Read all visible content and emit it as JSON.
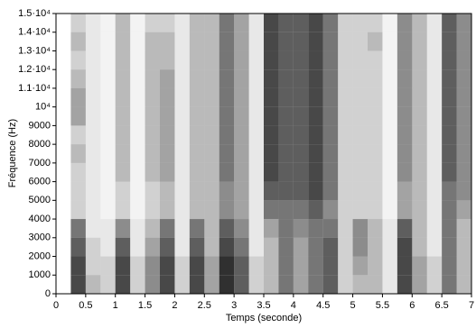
{
  "chart_data": {
    "type": "heatmap",
    "xlabel": "Temps (seconde)",
    "ylabel": "Fréquence (Hz)",
    "xlim": [
      0,
      7
    ],
    "ylim": [
      0,
      15000
    ],
    "xticks": [
      0,
      0.5,
      1,
      1.5,
      2,
      2.5,
      3,
      3.5,
      4,
      4.5,
      5,
      5.5,
      6,
      6.5,
      7
    ],
    "yticks": [
      0,
      1000,
      2000,
      3000,
      4000,
      5000,
      6000,
      7000,
      8000,
      9000,
      {
        "value": 10000,
        "label": "10⁴"
      },
      {
        "value": 11000,
        "label": "1.1·10⁴"
      },
      {
        "value": 12000,
        "label": "1.2·10⁴"
      },
      {
        "value": 13000,
        "label": "1.3·10⁴"
      },
      {
        "value": 14000,
        "label": "1.4·10⁴"
      },
      {
        "value": 15000,
        "label": "1.5·10⁴"
      }
    ],
    "xbins": [
      0,
      0.25,
      0.5,
      0.75,
      1,
      1.25,
      1.5,
      1.75,
      2,
      2.25,
      2.5,
      2.75,
      3,
      3.25,
      3.5,
      3.75,
      4,
      4.25,
      4.5,
      4.75,
      5,
      5.25,
      5.5,
      5.75,
      6,
      6.25,
      6.5,
      6.75,
      7
    ],
    "ybins": [
      0,
      1000,
      2000,
      3000,
      4000,
      5000,
      6000,
      7000,
      8000,
      9000,
      10000,
      11000,
      12000,
      13000,
      14000,
      15000
    ],
    "z": [
      [
        0,
        0,
        0,
        0,
        0,
        0,
        0,
        0,
        0,
        0,
        0,
        0,
        0,
        0,
        0
      ],
      [
        0.8,
        0.8,
        0.7,
        0.6,
        0.2,
        0.2,
        0.2,
        0.3,
        0.2,
        0.4,
        0.4,
        0.3,
        0.2,
        0.3,
        0.2
      ],
      [
        0.3,
        0.2,
        0.2,
        0.1,
        0.1,
        0.1,
        0.1,
        0.1,
        0.1,
        0.1,
        0.1,
        0.1,
        0.1,
        0.1,
        0.1
      ],
      [
        0.2,
        0.2,
        0.1,
        0.1,
        0.05,
        0.05,
        0.05,
        0.05,
        0.05,
        0.05,
        0.05,
        0.05,
        0.05,
        0.05,
        0.05
      ],
      [
        0.8,
        0.8,
        0.7,
        0.5,
        0.2,
        0.2,
        0.3,
        0.3,
        0.3,
        0.3,
        0.3,
        0.3,
        0.3,
        0.3,
        0.3
      ],
      [
        0.2,
        0.2,
        0.1,
        0.1,
        0.05,
        0.05,
        0.05,
        0.05,
        0.05,
        0.05,
        0.05,
        0.05,
        0.05,
        0.05,
        0.05
      ],
      [
        0.5,
        0.5,
        0.4,
        0.3,
        0.2,
        0.2,
        0.3,
        0.3,
        0.3,
        0.3,
        0.3,
        0.3,
        0.3,
        0.3,
        0.2
      ],
      [
        0.8,
        0.8,
        0.7,
        0.6,
        0.3,
        0.3,
        0.4,
        0.4,
        0.4,
        0.4,
        0.4,
        0.4,
        0.3,
        0.3,
        0.2
      ],
      [
        0.2,
        0.2,
        0.1,
        0.1,
        0.1,
        0.1,
        0.1,
        0.1,
        0.1,
        0.1,
        0.1,
        0.1,
        0.1,
        0.1,
        0.1
      ],
      [
        0.8,
        0.8,
        0.7,
        0.6,
        0.3,
        0.3,
        0.3,
        0.3,
        0.3,
        0.3,
        0.3,
        0.3,
        0.3,
        0.3,
        0.3
      ],
      [
        0.4,
        0.4,
        0.3,
        0.3,
        0.3,
        0.3,
        0.3,
        0.3,
        0.3,
        0.3,
        0.3,
        0.3,
        0.3,
        0.3,
        0.3
      ],
      [
        0.9,
        0.9,
        0.8,
        0.7,
        0.5,
        0.5,
        0.6,
        0.6,
        0.6,
        0.6,
        0.6,
        0.6,
        0.6,
        0.6,
        0.6
      ],
      [
        0.7,
        0.7,
        0.6,
        0.5,
        0.4,
        0.4,
        0.4,
        0.4,
        0.4,
        0.4,
        0.4,
        0.4,
        0.4,
        0.4,
        0.4
      ],
      [
        0.2,
        0.2,
        0.1,
        0.1,
        0.1,
        0.1,
        0.1,
        0.1,
        0.1,
        0.1,
        0.1,
        0.1,
        0.1,
        0.1,
        0.1
      ],
      [
        0.3,
        0.3,
        0.3,
        0.4,
        0.6,
        0.7,
        0.8,
        0.8,
        0.8,
        0.8,
        0.8,
        0.8,
        0.8,
        0.8,
        0.8
      ],
      [
        0.6,
        0.6,
        0.6,
        0.6,
        0.6,
        0.7,
        0.7,
        0.7,
        0.7,
        0.7,
        0.7,
        0.7,
        0.7,
        0.7,
        0.7
      ],
      [
        0.4,
        0.4,
        0.4,
        0.5,
        0.6,
        0.7,
        0.7,
        0.7,
        0.7,
        0.7,
        0.7,
        0.7,
        0.7,
        0.7,
        0.7
      ],
      [
        0.6,
        0.6,
        0.6,
        0.6,
        0.7,
        0.8,
        0.8,
        0.8,
        0.8,
        0.8,
        0.8,
        0.8,
        0.8,
        0.8,
        0.8
      ],
      [
        0.7,
        0.7,
        0.7,
        0.6,
        0.5,
        0.6,
        0.6,
        0.6,
        0.6,
        0.6,
        0.6,
        0.6,
        0.6,
        0.6,
        0.6
      ],
      [
        0.2,
        0.2,
        0.2,
        0.2,
        0.2,
        0.2,
        0.2,
        0.2,
        0.2,
        0.2,
        0.2,
        0.2,
        0.2,
        0.2,
        0.2
      ],
      [
        0.3,
        0.4,
        0.5,
        0.5,
        0.2,
        0.2,
        0.2,
        0.2,
        0.2,
        0.2,
        0.2,
        0.2,
        0.2,
        0.2,
        0.2
      ],
      [
        0.3,
        0.3,
        0.3,
        0.3,
        0.2,
        0.2,
        0.2,
        0.2,
        0.2,
        0.2,
        0.2,
        0.2,
        0.2,
        0.3,
        0.2
      ],
      [
        0.1,
        0.1,
        0.1,
        0.1,
        0.05,
        0.05,
        0.05,
        0.05,
        0.05,
        0.05,
        0.05,
        0.05,
        0.05,
        0.05,
        0.05
      ],
      [
        0.8,
        0.8,
        0.8,
        0.7,
        0.4,
        0.4,
        0.5,
        0.5,
        0.5,
        0.5,
        0.5,
        0.5,
        0.5,
        0.5,
        0.5
      ],
      [
        0.4,
        0.4,
        0.3,
        0.3,
        0.3,
        0.3,
        0.3,
        0.3,
        0.3,
        0.3,
        0.3,
        0.3,
        0.3,
        0.3,
        0.3
      ],
      [
        0.2,
        0.2,
        0.1,
        0.1,
        0.1,
        0.1,
        0.1,
        0.1,
        0.1,
        0.1,
        0.1,
        0.1,
        0.1,
        0.1,
        0.1
      ],
      [
        0.6,
        0.6,
        0.6,
        0.6,
        0.6,
        0.6,
        0.7,
        0.7,
        0.7,
        0.7,
        0.7,
        0.7,
        0.7,
        0.7,
        0.7
      ],
      [
        0.3,
        0.3,
        0.3,
        0.3,
        0.4,
        0.5,
        0.5,
        0.5,
        0.5,
        0.5,
        0.5,
        0.5,
        0.5,
        0.5,
        0.5
      ]
    ],
    "color": "#1a1a1a"
  }
}
